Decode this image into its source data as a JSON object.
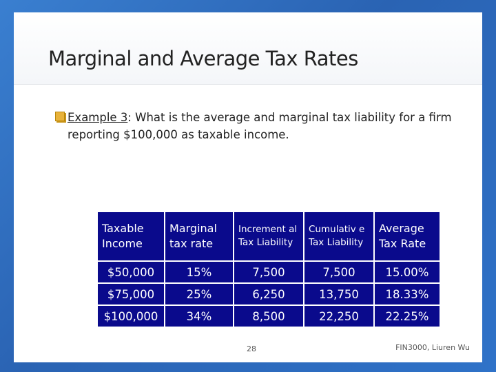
{
  "slide": {
    "title": "Marginal and Average Tax Rates",
    "bullet": {
      "link_text": "Example 3",
      "text": ": What is the average and marginal tax liability for a firm reporting $100,000 as taxable income."
    },
    "table": {
      "headers": [
        "Taxable Income",
        "Marginal tax rate",
        "Increment al Tax Liability",
        "Cumulativ e Tax Liability",
        "Average Tax Rate"
      ],
      "rows": [
        [
          "$50,000",
          "15%",
          "7,500",
          "7,500",
          "15.00%"
        ],
        [
          "$75,000",
          "25%",
          "6,250",
          "13,750",
          "18.33%"
        ],
        [
          "$100,000",
          "34%",
          "8,500",
          "22,250",
          "22.25%"
        ]
      ]
    },
    "page_number": "28",
    "footer": "FIN3000, Liuren Wu"
  },
  "colors": {
    "background": "#2f6fbf",
    "table_fill": "#0a0a8c",
    "bullet_icon": "#e8b23a"
  }
}
